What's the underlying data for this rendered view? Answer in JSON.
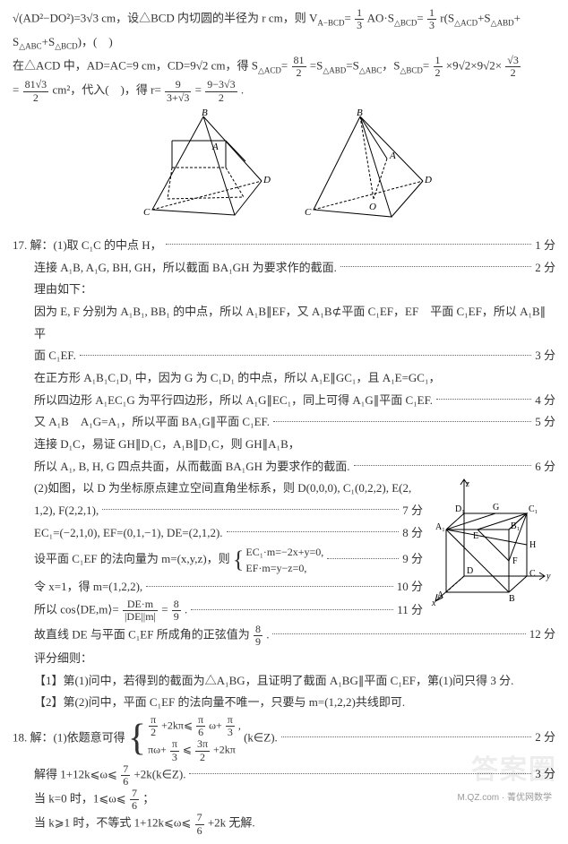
{
  "prelude": {
    "p1a": "√(AD²−DO²)=3√3 cm，设△BCD 内切圆的半径为 r cm，则 V",
    "p1a_sub": "A−BCD",
    "p1b": "=",
    "f1n": "1",
    "f1d": "3",
    "p1c": "AO·S",
    "p1c_sub": "△BCD",
    "p1d": "=",
    "f2n": "1",
    "f2d": "3",
    "p1e": " r(S",
    "p1e_sub": "△ACD",
    "p1f": "+S",
    "p1f_sub": "△ABD",
    "p1g": "+",
    "p2a": "S",
    "p2a_sub": "△ABC",
    "p2b": "+S",
    "p2b_sub": "△BCD",
    "p2c": ")，(　)",
    "p3a": "在△ACD 中，AD=AC=9 cm，CD=9√2 cm，得 S",
    "p3a_sub": "△ACD",
    "p3b": "=",
    "f3n": "81",
    "f3d": "2",
    "p3c": "=S",
    "p3c_sub": "△ABD",
    "p3d": "=S",
    "p3d_sub": "△ABC",
    "p3e": "，S",
    "p3e_sub": "△BCD",
    "p3f": "=",
    "f4n": "1",
    "f4d": "2",
    "p3g": "×9√2×9√2×",
    "f5n": "√3",
    "f5d": "2",
    "p4a": "=",
    "f6n": "81√3",
    "f6d": "2",
    "p4b": " cm²，代入(　)，得 r=",
    "f7n": "9",
    "f7d": "3+√3",
    "p4c": "=",
    "f8n": "9−3√3",
    "f8d": "2",
    "p4d": "."
  },
  "diagram1_labels": {
    "A": "A",
    "B": "B",
    "C": "C",
    "D": "D"
  },
  "diagram2_labels": {
    "A": "A",
    "B": "B",
    "C": "C",
    "D": "D",
    "O": "O"
  },
  "q17": [
    {
      "txt": "17. 解：(1)取 C₁C 的中点 H，",
      "pts": "1 分"
    },
    {
      "txt": "连接 A₁B, A₁G, BH, GH，所以截面 BA₁GH 为要求作的截面.",
      "pts": "2 分",
      "indent": true
    },
    {
      "txt": "理由如下：",
      "indent": true
    },
    {
      "txt": "因为 E, F 分别为 A₁B₁, BB₁ 的中点，所以 A₁B∥EF，又 A₁B⊄平面 C₁EF，EF　平面 C₁EF，所以 A₁B∥平",
      "indent": true
    },
    {
      "txt": "面 C₁EF.",
      "pts": "3 分",
      "indent": true
    },
    {
      "txt": "在正方形 A₁B₁C₁D₁ 中，因为 G 为 C₁D₁ 的中点，所以 A₁E∥GC₁，且 A₁E=GC₁，",
      "indent": true
    },
    {
      "txt": "所以四边形 A₁EC₁G 为平行四边形，所以 A₁G∥EC₁，同上可得 A₁G∥平面 C₁EF.",
      "pts": "4 分",
      "indent": true
    },
    {
      "txt": "又 A₁B　A₁G=A₁，所以平面 BA₁G∥平面 C₁EF.",
      "pts": "5 分",
      "indent": true
    },
    {
      "txt": "连接 D₁C，易证 GH∥D₁C，A₁B∥D₁C，则 GH∥A₁B，",
      "indent": true
    },
    {
      "txt": "所以 A₁, B, H, G 四点共面，从而截面 BA₁GH 为要求作的截面.",
      "pts": "6 分",
      "indent": true
    }
  ],
  "q17_part2_intro": "(2)如图，以 D 为坐标原点建立空间直角坐标系，则 D(0,0,0), C₁(0,2,2), E(2,",
  "q17_part2_l1b": "1,2), F(2,2,1),",
  "q17_part2_l1b_pts": "7 分",
  "q17_part2_l2a": "EC₁=(−2,1,0), EF=(0,1,−1), DE=(2,1,2).",
  "q17_part2_l2a_pts": "8 分",
  "q17_part2_l3a": "设平面 C₁EF 的法向量为 m=(x,y,z)，则",
  "brace_top": "EC₁·m=−2x+y=0,",
  "brace_bot": "EF·m=y−z=0,",
  "q17_part2_l3_pts": "9 分",
  "q17_part2_l4": "令 x=1，得 m=(1,2,2),",
  "q17_part2_l4_pts": "10 分",
  "q17_part2_l5a": "所以 cos⟨DE,m⟩=",
  "cos_f1n": "DE·m",
  "cos_f1d": "|DE||m|",
  "q17_part2_l5b": "=",
  "cos_f2n": "8",
  "cos_f2d": "9",
  "q17_part2_l5c": ".",
  "q17_part2_l5_pts": "11 分",
  "q17_part2_l6a": "故直线 DE 与平面 C₁EF 所成角的正弦值为 ",
  "sin_fn": "8",
  "sin_fd": "9",
  "q17_part2_l6b": ".",
  "q17_part2_l6_pts": "12 分",
  "rubric_title": "评分细则：",
  "rubric1": "【1】第(1)问中，若得到的截面为△A₁BG，且证明了截面 A₁BG∥平面 C₁EF，第(1)问只得 3 分.",
  "rubric2": "【2】第(2)问中，平面 C₁EF 的法向量不唯一，只要与 m=(1,2,2)共线即可.",
  "q18_intro": "18. 解：(1)依题意可得",
  "q18_brace_top_a": "π",
  "q18_brace_top_b": "2",
  "q18_brace_top_c": "+2kπ⩽",
  "q18_brace_top_d": "π",
  "q18_brace_top_e": "6",
  "q18_brace_top_f": "ω+",
  "q18_brace_top_g": "π",
  "q18_brace_top_h": "3",
  "q18_brace_top_i": ",",
  "q18_brace_bot_a": "πω+",
  "q18_brace_bot_b": "π",
  "q18_brace_bot_c": "3",
  "q18_brace_bot_d": "⩽",
  "q18_brace_bot_e": "3π",
  "q18_brace_bot_f": "2",
  "q18_brace_bot_g": "+2kπ",
  "q18_k": "(k∈Z).",
  "q18_pts1": "2 分",
  "q18_l2a": "解得 1+12k⩽ω⩽",
  "q18_l2_fn": "7",
  "q18_l2_fd": "6",
  "q18_l2b": "+2k(k∈Z).",
  "q18_l2_pts": "3 分",
  "q18_l3a": "当 k=0 时，1⩽ω⩽",
  "q18_l3_fn": "7",
  "q18_l3_fd": "6",
  "q18_l3b": "；",
  "q18_l4a": "当 k⩾1 时，不等式 1+12k⩽ω⩽",
  "q18_l4_fn": "7",
  "q18_l4_fd": "6",
  "q18_l4b": "+2k 无解.",
  "cube_labels": {
    "D1": "D₁",
    "G": "G",
    "C1": "C₁",
    "A1": "A₁",
    "E": "E",
    "B1": "B₁",
    "H": "H",
    "F": "F",
    "D": "D",
    "C": "C",
    "A": "A",
    "B": "B",
    "x": "x",
    "y": "y",
    "z": "z"
  },
  "watermark": "答案圈",
  "footer": "M.QZ.com · 菁优网数学"
}
